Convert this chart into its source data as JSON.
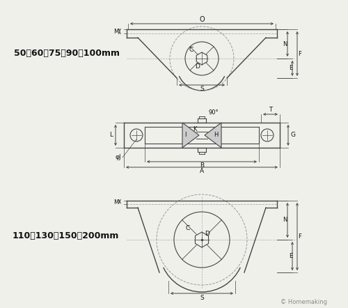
{
  "bg_color": "#f0f0eb",
  "line_color": "#444444",
  "dim_color": "#444444",
  "label_color": "#111111",
  "text1": "50〆60〆75〆90〆100mm",
  "text2": "110〆130〆150〆200mm",
  "copyright": "© Homemaking"
}
